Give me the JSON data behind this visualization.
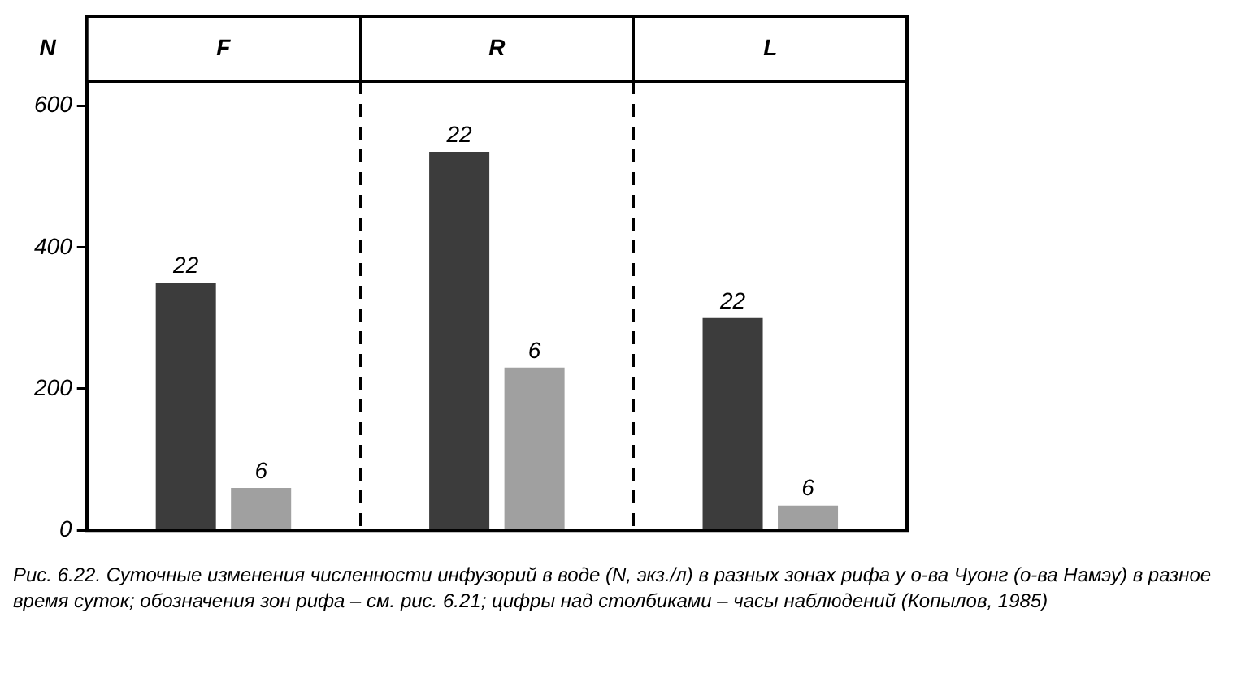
{
  "chart_data": {
    "type": "bar",
    "ylabel": "N",
    "categories": [
      "F",
      "R",
      "L"
    ],
    "series": [
      {
        "name": "22",
        "color": "#3c3c3c",
        "values": [
          350,
          535,
          300
        ]
      },
      {
        "name": "6",
        "color": "#a0a0a0",
        "values": [
          60,
          230,
          35
        ]
      }
    ],
    "ylim": [
      0,
      635
    ],
    "yticks": [
      0,
      200,
      400,
      600
    ],
    "grid": "x",
    "legend": false,
    "annotations": [
      "Рис. 6.22. Суточные изменения численности инфузорий в воде (N, экз./л) в разных зонах рифа у о-ва Чуонг (о-ва Намэу) в разное время суток; обозначения зон рифа – см. рис. 6.21; цифры над столбиками – часы наблюдений (Копылов, 1985)"
    ]
  }
}
